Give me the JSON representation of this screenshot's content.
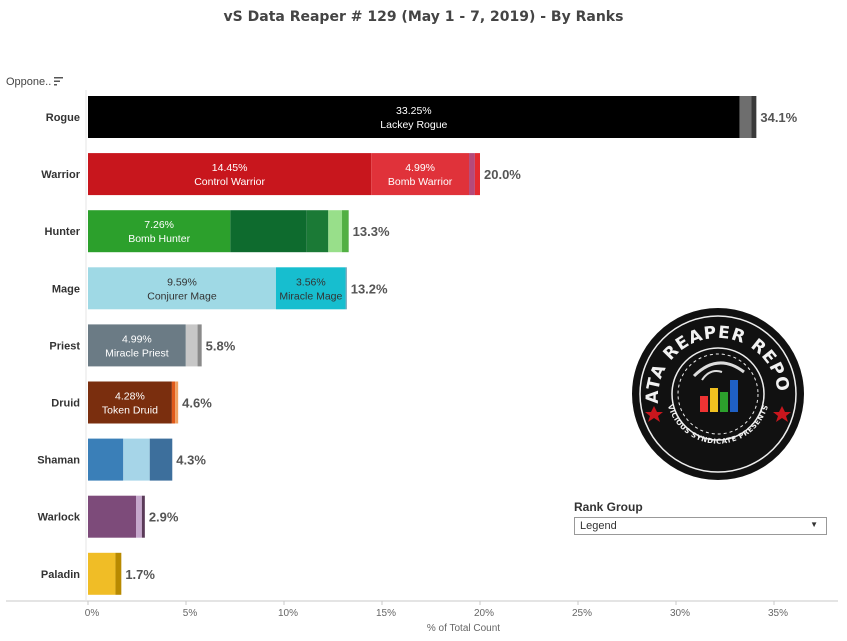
{
  "chart_data": {
    "type": "bar",
    "orientation": "horizontal",
    "stacked": true,
    "title": "vS Data Reaper #  129 (May 1 - 7, 2019) - By Ranks",
    "xlabel": "% of Total Count",
    "ylabel": "Oppone..",
    "xlim": [
      0,
      37
    ],
    "xticks": [
      0,
      5,
      10,
      15,
      20,
      25,
      30,
      35
    ],
    "xtick_labels": [
      "0%",
      "5%",
      "10%",
      "15%",
      "20%",
      "25%",
      "30%",
      "35%"
    ],
    "grid": false,
    "categories": [
      "Rogue",
      "Warrior",
      "Hunter",
      "Mage",
      "Priest",
      "Druid",
      "Shaman",
      "Warlock",
      "Paladin"
    ],
    "totals": [
      "34.1%",
      "20.0%",
      "13.3%",
      "13.2%",
      "5.8%",
      "4.6%",
      "4.3%",
      "2.9%",
      "1.7%"
    ],
    "bars": [
      {
        "category": "Rogue",
        "segments": [
          {
            "value": 33.25,
            "color": "#000000",
            "label": "33.25%",
            "sublabel": "Lackey Rogue",
            "text_color": "#ffffff"
          },
          {
            "value": 0.6,
            "color": "#6e6e6e"
          },
          {
            "value": 0.25,
            "color": "#3a3a3a"
          }
        ]
      },
      {
        "category": "Warrior",
        "segments": [
          {
            "value": 14.45,
            "color": "#c8161d",
            "label": "14.45%",
            "sublabel": "Control Warrior",
            "text_color": "#ffffff"
          },
          {
            "value": 4.99,
            "color": "#e0323a",
            "label": "4.99%",
            "sublabel": "Bomb Warrior",
            "text_color": "#ffffff"
          },
          {
            "value": 0.3,
            "color": "#b54a7a"
          },
          {
            "value": 0.26,
            "color": "#e52a2f"
          }
        ]
      },
      {
        "category": "Hunter",
        "segments": [
          {
            "value": 7.26,
            "color": "#2ca02c",
            "label": "7.26%",
            "sublabel": "Bomb Hunter",
            "text_color": "#ffffff"
          },
          {
            "value": 3.9,
            "color": "#0e6b2e"
          },
          {
            "value": 1.1,
            "color": "#1b7a36"
          },
          {
            "value": 0.7,
            "color": "#98df8a"
          },
          {
            "value": 0.34,
            "color": "#52b043"
          }
        ]
      },
      {
        "category": "Mage",
        "segments": [
          {
            "value": 9.59,
            "color": "#9fd9e5",
            "label": "9.59%",
            "sublabel": "Conjurer Mage",
            "text_color": "#333333"
          },
          {
            "value": 3.56,
            "color": "#17becf",
            "label": "3.56%",
            "sublabel": "Miracle Mage",
            "text_color": "#333333"
          },
          {
            "value": 0.05,
            "color": "#5a8fa8"
          }
        ]
      },
      {
        "category": "Priest",
        "segments": [
          {
            "value": 4.99,
            "color": "#6b7b85",
            "label": "4.99%",
            "sublabel": "Miracle Priest",
            "text_color": "#ffffff"
          },
          {
            "value": 0.6,
            "color": "#c7c7c7"
          },
          {
            "value": 0.21,
            "color": "#8a8a8a"
          }
        ]
      },
      {
        "category": "Druid",
        "segments": [
          {
            "value": 4.28,
            "color": "#7a2e0e",
            "label": "4.28%",
            "sublabel": "Token Druid",
            "text_color": "#ffffff"
          },
          {
            "value": 0.17,
            "color": "#e05a1a"
          },
          {
            "value": 0.15,
            "color": "#f0a060"
          }
        ]
      },
      {
        "category": "Shaman",
        "segments": [
          {
            "value": 1.8,
            "color": "#3a7fb8"
          },
          {
            "value": 1.35,
            "color": "#a6d5e8"
          },
          {
            "value": 1.15,
            "color": "#3d6f9c"
          }
        ]
      },
      {
        "category": "Warlock",
        "segments": [
          {
            "value": 2.45,
            "color": "#7d4b7a"
          },
          {
            "value": 0.3,
            "color": "#c5a7cc"
          },
          {
            "value": 0.15,
            "color": "#5a3a58"
          }
        ]
      },
      {
        "category": "Paladin",
        "segments": [
          {
            "value": 1.4,
            "color": "#f0bd26"
          },
          {
            "value": 0.3,
            "color": "#b88a00"
          }
        ]
      }
    ]
  },
  "legend_filter": {
    "title": "Rank Group",
    "selected": "Legend"
  },
  "logo": {
    "text_top": "DATA REAPER REPORT",
    "text_bottom": "VICIOUS SYNDICATE PRESENTS"
  }
}
